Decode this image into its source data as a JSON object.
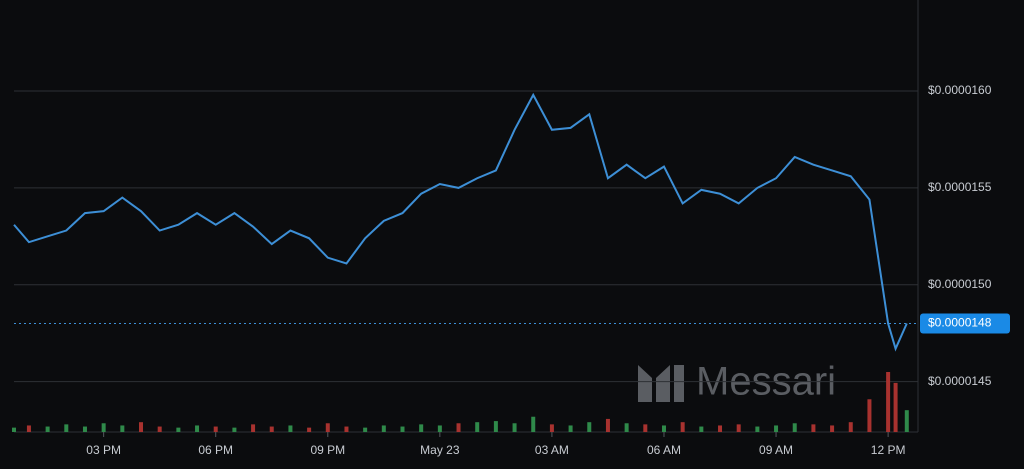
{
  "chart_data": {
    "type": "line",
    "watermark": "Messari",
    "x": [
      -2.4,
      -2,
      -1.5,
      -1,
      -0.5,
      0,
      0.5,
      1,
      1.5,
      2,
      2.5,
      3,
      3.5,
      4,
      4.5,
      5,
      5.5,
      6,
      6.5,
      7,
      7.5,
      8,
      8.5,
      9,
      9.5,
      10,
      10.5,
      11,
      11.5,
      12,
      12.5,
      13,
      13.5,
      14,
      14.5,
      15,
      15.5,
      16,
      16.5,
      17,
      17.5,
      18,
      18.5,
      19,
      19.5,
      20,
      20.5,
      21,
      21.2,
      21.5
    ],
    "series": [
      {
        "color": "#3d8fd6",
        "values": [
          1.531e-05,
          1.522e-05,
          1.525e-05,
          1.528e-05,
          1.537e-05,
          1.538e-05,
          1.545e-05,
          1.538e-05,
          1.528e-05,
          1.531e-05,
          1.537e-05,
          1.531e-05,
          1.537e-05,
          1.53e-05,
          1.521e-05,
          1.528e-05,
          1.524e-05,
          1.514e-05,
          1.511e-05,
          1.524e-05,
          1.533e-05,
          1.537e-05,
          1.547e-05,
          1.552e-05,
          1.55e-05,
          1.555e-05,
          1.559e-05,
          1.58e-05,
          1.598e-05,
          1.58e-05,
          1.581e-05,
          1.588e-05,
          1.555e-05,
          1.562e-05,
          1.555e-05,
          1.561e-05,
          1.542e-05,
          1.549e-05,
          1.547e-05,
          1.542e-05,
          1.55e-05,
          1.555e-05,
          1.566e-05,
          1.562e-05,
          1.559e-05,
          1.556e-05,
          1.544e-05,
          1.48e-05,
          1.467e-05,
          1.48e-05
        ]
      },
      {
        "role": "volume",
        "values": [
          4,
          6,
          5,
          7,
          5,
          8,
          6,
          9,
          5,
          4,
          6,
          5,
          4,
          7,
          5,
          6,
          4,
          8,
          5,
          4,
          6,
          5,
          7,
          6,
          8,
          9,
          10,
          8,
          14,
          7,
          6,
          9,
          12,
          8,
          7,
          6,
          9,
          5,
          6,
          7,
          5,
          6,
          8,
          7,
          6,
          9,
          30,
          55,
          45,
          20
        ]
      }
    ],
    "current_price": {
      "value": 1.48e-05,
      "label": "$0.0000148"
    },
    "xlim": [
      -2.4,
      21.8
    ],
    "xticks": [
      {
        "value": 0,
        "label": "03 PM"
      },
      {
        "value": 3,
        "label": "06 PM"
      },
      {
        "value": 6,
        "label": "09 PM"
      },
      {
        "value": 9,
        "label": "May 23"
      },
      {
        "value": 12,
        "label": "03 AM"
      },
      {
        "value": 15,
        "label": "06 AM"
      },
      {
        "value": 18,
        "label": "09 AM"
      },
      {
        "value": 21,
        "label": "12 PM"
      }
    ],
    "ylim": [
      1.424e-05,
      1.647e-05
    ],
    "yticks": [
      {
        "value": 1.45e-05,
        "label": "$0.0000145"
      },
      {
        "value": 1.5e-05,
        "label": "$0.0000150"
      },
      {
        "value": 1.55e-05,
        "label": "$0.0000155"
      },
      {
        "value": 1.6e-05,
        "label": "$0.0000160"
      }
    ],
    "grid": true
  }
}
